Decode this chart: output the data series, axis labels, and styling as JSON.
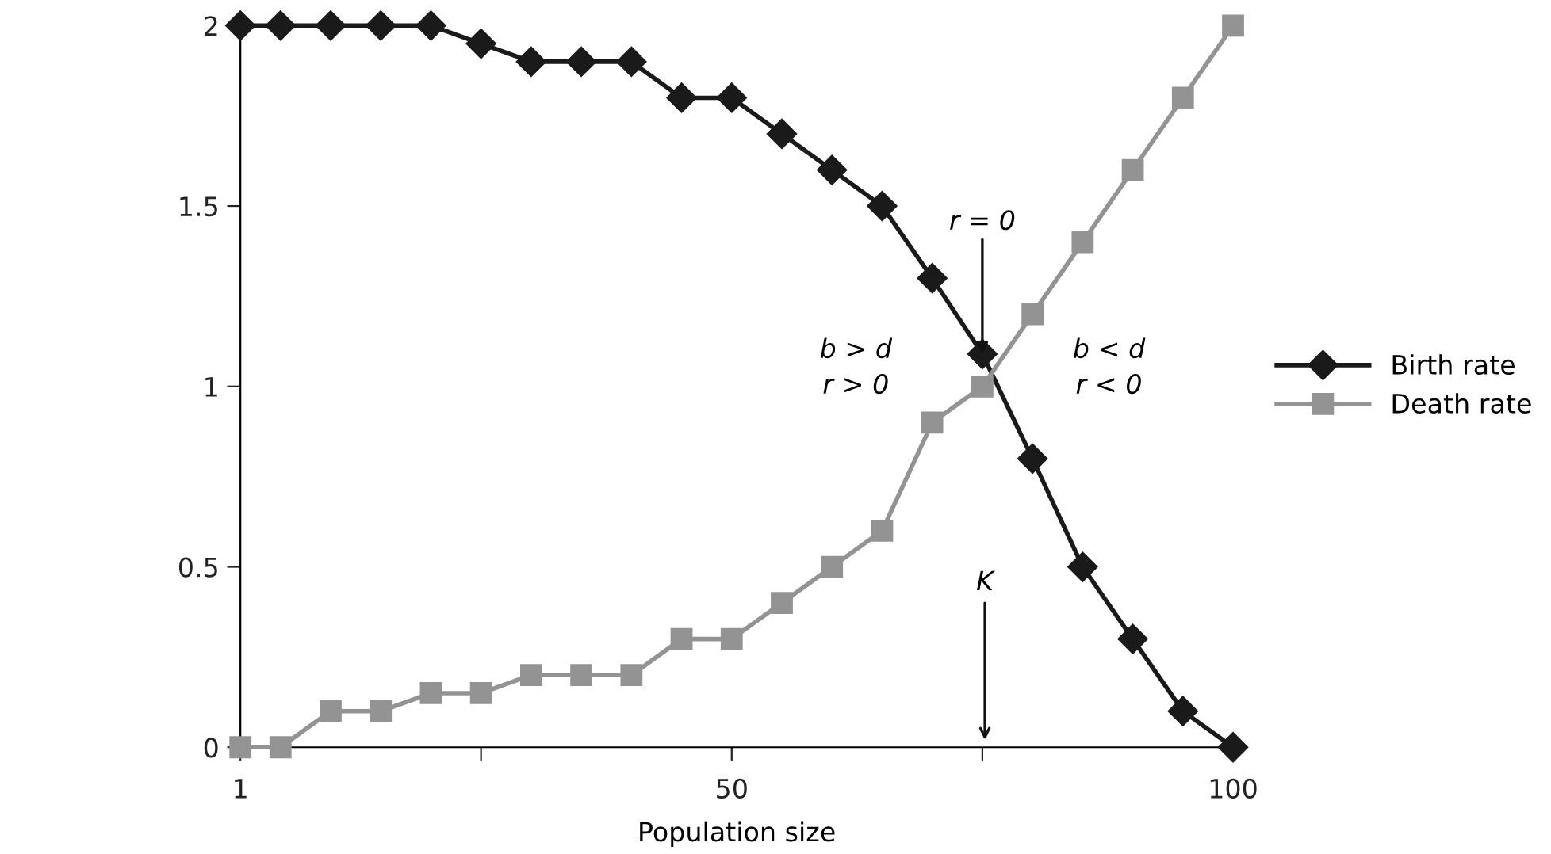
{
  "chart_data": {
    "type": "line",
    "xlabel": "Population size",
    "x": [
      1,
      5,
      10,
      15,
      20,
      25,
      30,
      35,
      40,
      45,
      50,
      55,
      60,
      65,
      70,
      75,
      80,
      85,
      90,
      95,
      100
    ],
    "series": [
      {
        "name": "Birth rate",
        "color": "#1a1a1a",
        "marker": "diamond",
        "values": [
          2,
          2,
          2,
          2,
          2,
          1.95,
          1.9,
          1.9,
          1.9,
          1.8,
          1.8,
          1.7,
          1.6,
          1.5,
          1.3,
          1.09,
          0.8,
          0.5,
          0.3,
          0.1,
          0
        ]
      },
      {
        "name": "Death rate",
        "color": "#939393",
        "marker": "square",
        "values": [
          0,
          0,
          0.1,
          0.1,
          0.15,
          0.15,
          0.2,
          0.2,
          0.2,
          0.3,
          0.3,
          0.4,
          0.5,
          0.6,
          0.9,
          1.0,
          1.2,
          1.4,
          1.6,
          1.8,
          2.0
        ]
      }
    ],
    "xlim": [
      1,
      100
    ],
    "ylim": [
      0,
      2
    ],
    "xticks": [
      1,
      {
        "value": 25,
        "label": null
      },
      50,
      {
        "value": 75,
        "label": null
      },
      100
    ],
    "yticks": [
      0,
      0.5,
      1,
      1.5,
      2
    ],
    "grid": false,
    "legend": "right",
    "line_style": "solid",
    "annotations": [
      {
        "text": "r = 0",
        "x": 75,
        "y": 1.09
      },
      "K",
      "b > d\nr > 0",
      "b < d\nr < 0"
    ]
  }
}
